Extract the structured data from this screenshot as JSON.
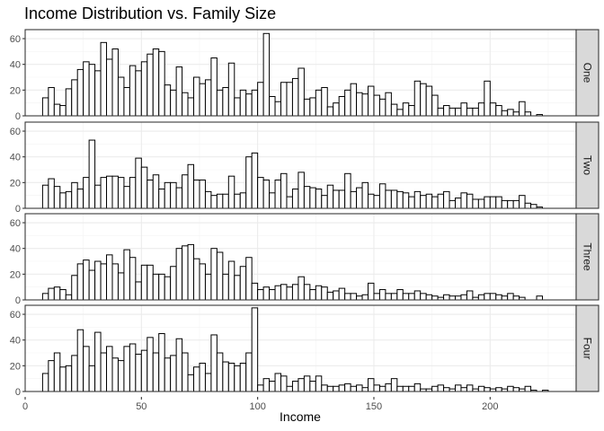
{
  "chart_data": {
    "type": "histogram",
    "title": "Income Distribution vs. Family Size",
    "xlabel": "Income",
    "ylabel": "",
    "facet_by": "Family Size",
    "bins": {
      "start": 7.5,
      "width": 2.5,
      "count": 87
    },
    "xlim": [
      0,
      237
    ],
    "ylim": [
      0,
      67
    ],
    "x_ticks": [
      0,
      50,
      100,
      150,
      200
    ],
    "y_ticks": [
      0,
      20,
      40,
      60
    ],
    "grid": true,
    "panels": [
      {
        "name": "One",
        "counts": [
          14,
          22,
          9,
          8,
          21,
          28,
          36,
          42,
          40,
          35,
          57,
          44,
          52,
          30,
          22,
          39,
          35,
          42,
          48,
          52,
          50,
          24,
          20,
          38,
          18,
          14,
          30,
          25,
          28,
          45,
          20,
          22,
          41,
          14,
          20,
          17,
          20,
          26,
          64,
          15,
          11,
          26,
          26,
          29,
          37,
          13,
          14,
          20,
          22,
          7,
          10,
          15,
          20,
          25,
          18,
          17,
          23,
          16,
          13,
          18,
          9,
          5,
          10,
          8,
          27,
          25,
          23,
          16,
          6,
          8,
          6,
          6,
          10,
          6,
          6,
          10,
          27,
          10,
          8,
          4,
          5,
          3,
          11,
          3,
          0,
          1,
          0
        ]
      },
      {
        "name": "Two",
        "counts": [
          18,
          23,
          17,
          12,
          13,
          20,
          15,
          24,
          53,
          18,
          24,
          25,
          25,
          24,
          17,
          24,
          39,
          32,
          22,
          26,
          15,
          20,
          20,
          16,
          26,
          34,
          22,
          22,
          13,
          10,
          11,
          11,
          25,
          11,
          12,
          40,
          43,
          24,
          22,
          12,
          22,
          27,
          9,
          15,
          28,
          17,
          16,
          15,
          10,
          18,
          14,
          14,
          27,
          13,
          16,
          20,
          11,
          10,
          19,
          14,
          14,
          13,
          12,
          9,
          13,
          10,
          11,
          9,
          11,
          13,
          6,
          8,
          12,
          11,
          7,
          7,
          9,
          9,
          9,
          6,
          6,
          6,
          10,
          4,
          3,
          1,
          0
        ]
      },
      {
        "name": "Three",
        "counts": [
          5,
          9,
          10,
          8,
          4,
          19,
          28,
          31,
          23,
          30,
          28,
          35,
          28,
          21,
          39,
          33,
          14,
          27,
          27,
          20,
          20,
          18,
          26,
          40,
          42,
          43,
          32,
          28,
          20,
          40,
          37,
          20,
          30,
          19,
          26,
          33,
          13,
          8,
          10,
          8,
          11,
          12,
          10,
          12,
          18,
          12,
          8,
          11,
          10,
          6,
          7,
          9,
          5,
          5,
          3,
          4,
          13,
          5,
          8,
          5,
          5,
          8,
          5,
          5,
          7,
          5,
          4,
          3,
          2,
          4,
          3,
          3,
          4,
          7,
          2,
          4,
          5,
          5,
          4,
          3,
          5,
          3,
          2,
          0,
          0,
          3,
          0
        ]
      },
      {
        "name": "Four",
        "counts": [
          14,
          24,
          30,
          19,
          20,
          28,
          48,
          35,
          20,
          46,
          30,
          35,
          26,
          24,
          35,
          37,
          29,
          32,
          42,
          30,
          45,
          26,
          28,
          41,
          30,
          13,
          19,
          22,
          14,
          44,
          30,
          23,
          22,
          20,
          22,
          30,
          65,
          5,
          10,
          8,
          14,
          12,
          4,
          8,
          10,
          12,
          8,
          12,
          5,
          4,
          4,
          5,
          6,
          4,
          5,
          3,
          10,
          5,
          4,
          6,
          10,
          4,
          4,
          4,
          6,
          2,
          2,
          4,
          5,
          3,
          2,
          5,
          3,
          5,
          2,
          4,
          3,
          2,
          3,
          2,
          4,
          3,
          2,
          4,
          1,
          0,
          1
        ]
      }
    ]
  }
}
